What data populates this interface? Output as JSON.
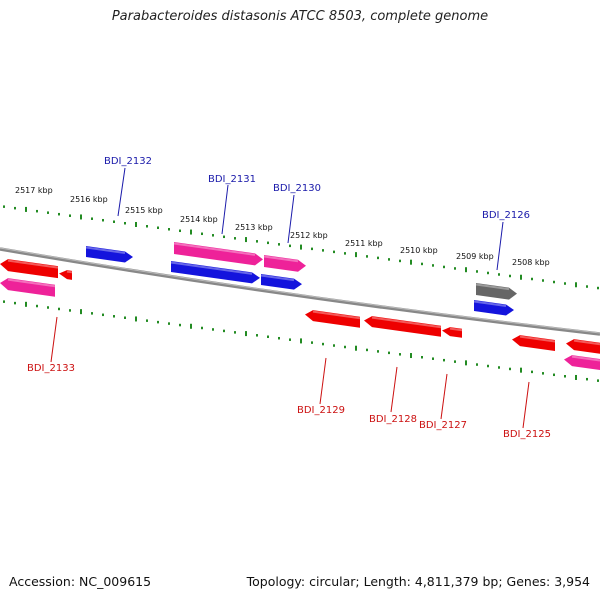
{
  "title": "Parabacteroides distasonis ATCC 8503, complete genome",
  "footer": {
    "accession": "Accession: NC_009615",
    "summary": "Topology: circular; Length: 4,811,379 bp; Genes: 3,954"
  },
  "colors": {
    "tick": "#228b22",
    "backbone": "#888888",
    "forward_label": "#1a1aaa",
    "reverse_label": "#cc1111",
    "red": "#ee0000",
    "blue": "#1414dd",
    "pink": "#ee2299",
    "gray": "#666666"
  },
  "kbp_labels": [
    "2517 kbp",
    "2516 kbp",
    "2515 kbp",
    "2514 kbp",
    "2513 kbp",
    "2512 kbp",
    "2511 kbp",
    "2510 kbp",
    "2509 kbp",
    "2508 kbp"
  ],
  "gene_labels": {
    "forward": [
      "BDI_2132",
      "BDI_2131",
      "BDI_2130",
      "BDI_2126"
    ],
    "reverse": [
      "BDI_2133",
      "BDI_2129",
      "BDI_2128",
      "BDI_2127",
      "BDI_2125"
    ]
  }
}
